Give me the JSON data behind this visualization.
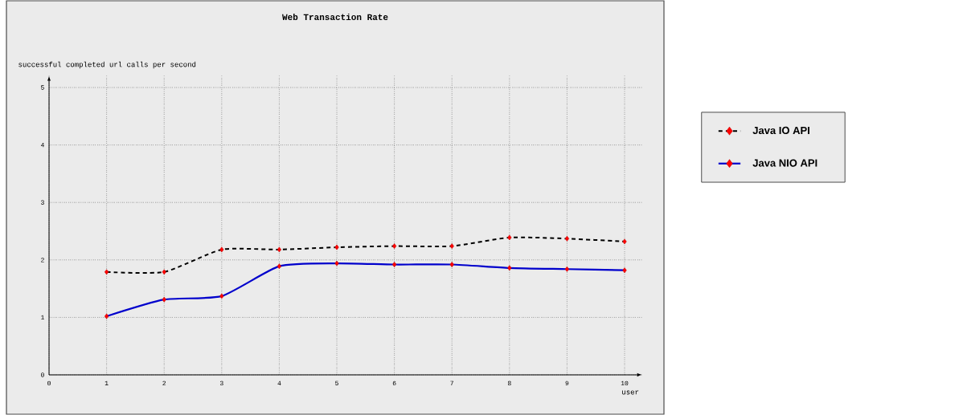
{
  "chart_data": {
    "type": "line",
    "title": "Web Transaction Rate",
    "xlabel": "user",
    "ylabel": "successful completed url calls per second",
    "x": [
      1,
      2,
      3,
      4,
      5,
      6,
      7,
      8,
      9,
      10
    ],
    "series": [
      {
        "name": "Java IO API",
        "color": "#000000",
        "line_style": "dashed",
        "values": [
          1.79,
          1.79,
          2.18,
          2.18,
          2.22,
          2.24,
          2.24,
          2.39,
          2.37,
          2.32
        ]
      },
      {
        "name": "Java NIO API",
        "color": "#0000cc",
        "line_style": "solid",
        "values": [
          1.02,
          1.31,
          1.37,
          1.89,
          1.94,
          1.92,
          1.92,
          1.86,
          1.84,
          1.82
        ]
      }
    ],
    "marker": "diamond",
    "xlim": [
      0,
      10.3
    ],
    "ylim": [
      0,
      5.2
    ],
    "xticks": [
      0,
      1,
      2,
      3,
      4,
      5,
      6,
      7,
      8,
      9,
      10
    ],
    "yticks": [
      0,
      1,
      2,
      3,
      4,
      5
    ],
    "grid": true,
    "legend": "right"
  }
}
